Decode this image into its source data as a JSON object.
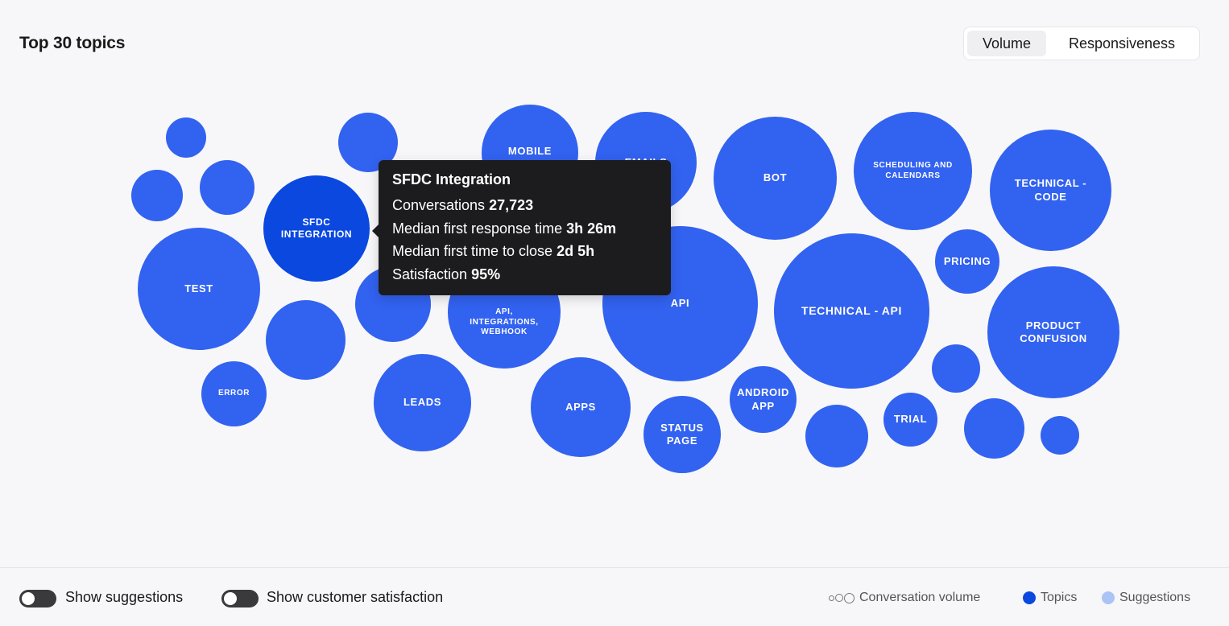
{
  "header": {
    "title": "Top 30 topics",
    "tabs": [
      {
        "label": "Volume",
        "active": true
      },
      {
        "label": "Responsiveness",
        "active": false
      }
    ]
  },
  "bubbles": [
    {
      "label": "",
      "name": "bubble-unlabeled-1"
    },
    {
      "label": "",
      "name": "bubble-unlabeled-2"
    },
    {
      "label": "",
      "name": "bubble-unlabeled-3"
    },
    {
      "label": "",
      "name": "bubble-unlabeled-4"
    },
    {
      "label": "SFDC Integration",
      "name": "bubble-sfdc-integration"
    },
    {
      "label": "Test",
      "name": "bubble-test"
    },
    {
      "label": "",
      "name": "bubble-unlabeled-5"
    },
    {
      "label": "Error",
      "name": "bubble-error"
    },
    {
      "label": "",
      "name": "bubble-unlabeled-6"
    },
    {
      "label": "Leads",
      "name": "bubble-leads"
    },
    {
      "label": "Mobile",
      "name": "bubble-mobile"
    },
    {
      "label": "Emails",
      "name": "bubble-emails"
    },
    {
      "label": "API, Integrations, Webhook",
      "name": "bubble-api-integrations-webhook"
    },
    {
      "label": "Apps",
      "name": "bubble-apps"
    },
    {
      "label": "API",
      "name": "bubble-api"
    },
    {
      "label": "Status Page",
      "name": "bubble-status-page"
    },
    {
      "label": "Bot",
      "name": "bubble-bot"
    },
    {
      "label": "Android App",
      "name": "bubble-android-app"
    },
    {
      "label": "Technical - API",
      "name": "bubble-technical-api"
    },
    {
      "label": "",
      "name": "bubble-unlabeled-7"
    },
    {
      "label": "Scheduling and Calendars",
      "name": "bubble-scheduling-calendars"
    },
    {
      "label": "Pricing",
      "name": "bubble-pricing"
    },
    {
      "label": "Trial",
      "name": "bubble-trial"
    },
    {
      "label": "Technical - Code",
      "name": "bubble-technical-code"
    },
    {
      "label": "Product Confusion",
      "name": "bubble-product-confusion"
    },
    {
      "label": "",
      "name": "bubble-unlabeled-8"
    },
    {
      "label": "",
      "name": "bubble-unlabeled-9"
    },
    {
      "label": "",
      "name": "bubble-unlabeled-10"
    }
  ],
  "tooltip": {
    "title": "SFDC Integration",
    "conversations_label": "Conversations",
    "conversations_value": "27,723",
    "first_response_label": "Median first response time",
    "first_response_value": "3h 26m",
    "time_to_close_label": "Median first time to close",
    "time_to_close_value": "2d 5h",
    "satisfaction_label": "Satisfaction",
    "satisfaction_value": "95%"
  },
  "footer": {
    "toggles": [
      {
        "label": "Show suggestions",
        "on": false
      },
      {
        "label": "Show customer satisfaction",
        "on": false
      }
    ],
    "legend": {
      "volume": "Conversation volume",
      "topics": "Topics",
      "suggestions": "Suggestions"
    }
  },
  "colors": {
    "topic": "#3262f0",
    "topic_active": "#0a48e0",
    "suggestion": "#a9c4f5",
    "tooltip_bg": "#1c1c1e"
  }
}
